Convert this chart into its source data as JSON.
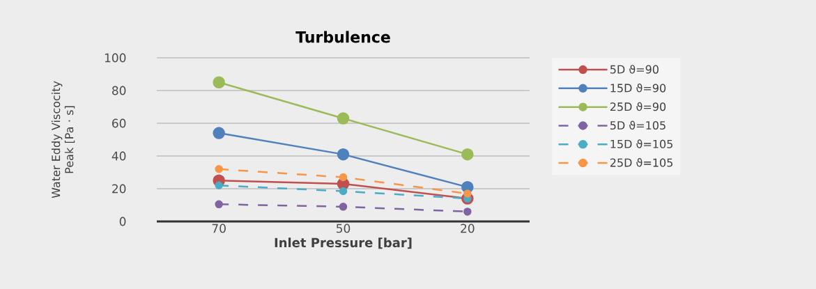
{
  "chart_data": {
    "type": "line",
    "title": "Turbulence",
    "xlabel": "Inlet Pressure [bar]",
    "ylabel": "Water Eddy Viscocity Peak [Pa · s]",
    "categories": [
      "70",
      "50",
      "20"
    ],
    "series": [
      {
        "name": "5D ϑ=90",
        "color": "#c0504d",
        "line_style": "solid",
        "values": [
          25,
          23,
          14
        ]
      },
      {
        "name": "15D ϑ=90",
        "color": "#4f81bd",
        "line_style": "solid",
        "values": [
          54,
          41,
          21
        ]
      },
      {
        "name": "25D ϑ=90",
        "color": "#9bbb59",
        "line_style": "solid",
        "values": [
          85,
          63,
          41
        ]
      },
      {
        "name": "5D ϑ=105",
        "color": "#8064a2",
        "line_style": "dashed",
        "values": [
          10.5,
          9,
          6
        ]
      },
      {
        "name": "15D ϑ=105",
        "color": "#4bacc6",
        "line_style": "dashed",
        "values": [
          22,
          18.5,
          14
        ]
      },
      {
        "name": "25D ϑ=105",
        "color": "#f79646",
        "line_style": "dashed",
        "values": [
          32,
          27,
          17
        ]
      }
    ],
    "ylim": [
      0,
      100
    ],
    "yticks": [
      0,
      20,
      40,
      60,
      80,
      100
    ],
    "grid": "y",
    "legend": "right",
    "marker": "circle"
  }
}
